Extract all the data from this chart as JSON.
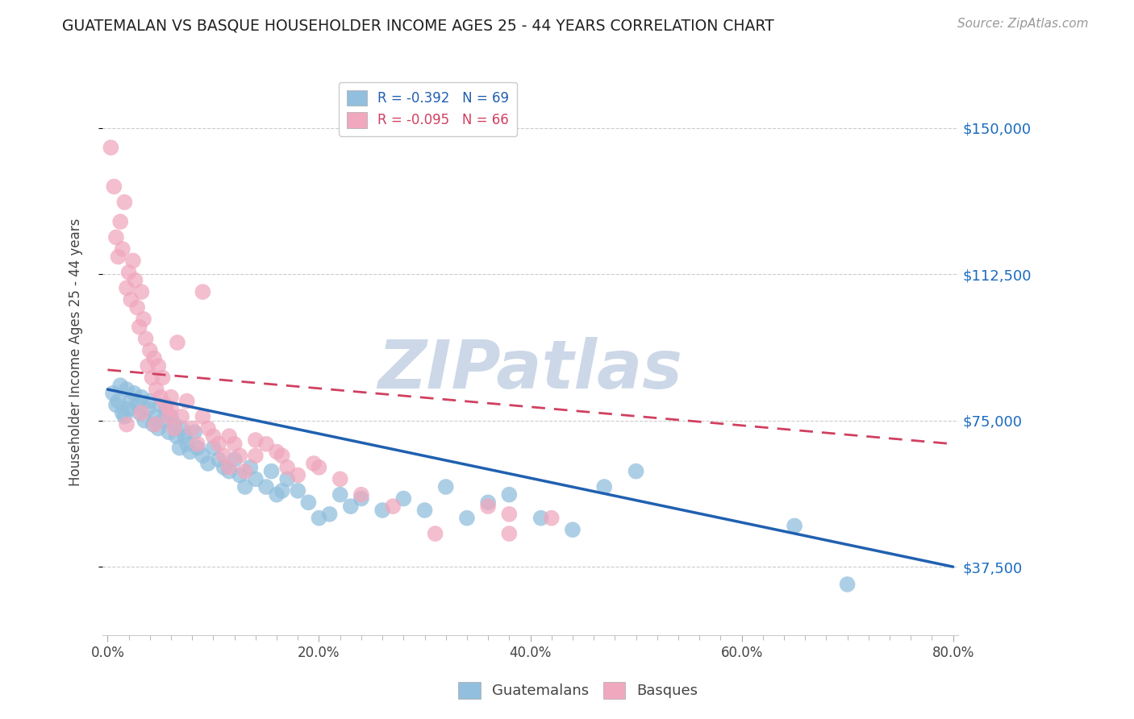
{
  "title": "GUATEMALAN VS BASQUE HOUSEHOLDER INCOME AGES 25 - 44 YEARS CORRELATION CHART",
  "source": "Source: ZipAtlas.com",
  "ylabel": "Householder Income Ages 25 - 44 years",
  "ytick_labels": [
    "$37,500",
    "$75,000",
    "$112,500",
    "$150,000"
  ],
  "ytick_vals": [
    37500,
    75000,
    112500,
    150000
  ],
  "ylim": [
    20000,
    165000
  ],
  "xlim": [
    -0.005,
    0.805
  ],
  "xtick_labels": [
    "0.0%",
    "20.0%",
    "40.0%",
    "60.0%",
    "80.0%"
  ],
  "xtick_vals": [
    0.0,
    0.2,
    0.4,
    0.6,
    0.8
  ],
  "legend_blue_label": "R = -0.392   N = 69",
  "legend_pink_label": "R = -0.095   N = 66",
  "bottom_legend_labels": [
    "Guatemalans",
    "Basques"
  ],
  "watermark": "ZIPatlas",
  "watermark_color": "#ccd8e8",
  "blue_scatter_color": "#92bfdd",
  "blue_scatter_edge": "none",
  "pink_scatter_color": "#f0a8be",
  "pink_scatter_edge": "none",
  "blue_line_color": "#2060b0",
  "pink_line_color": "#d04060",
  "guatemalan_line_x": [
    0.0,
    0.8
  ],
  "guatemalan_line_y": [
    83000,
    37500
  ],
  "basque_line_x": [
    0.0,
    0.8
  ],
  "basque_line_y": [
    88000,
    69000
  ],
  "guatemalan_x": [
    0.005,
    0.008,
    0.01,
    0.012,
    0.014,
    0.016,
    0.018,
    0.02,
    0.022,
    0.025,
    0.028,
    0.03,
    0.032,
    0.035,
    0.038,
    0.04,
    0.043,
    0.045,
    0.048,
    0.05,
    0.052,
    0.055,
    0.058,
    0.06,
    0.063,
    0.065,
    0.068,
    0.07,
    0.073,
    0.075,
    0.078,
    0.082,
    0.085,
    0.09,
    0.095,
    0.1,
    0.105,
    0.11,
    0.115,
    0.12,
    0.125,
    0.13,
    0.135,
    0.14,
    0.15,
    0.155,
    0.16,
    0.165,
    0.17,
    0.18,
    0.19,
    0.2,
    0.21,
    0.22,
    0.23,
    0.24,
    0.26,
    0.28,
    0.3,
    0.32,
    0.34,
    0.36,
    0.38,
    0.41,
    0.44,
    0.47,
    0.5,
    0.65,
    0.7
  ],
  "guatemalan_y": [
    82000,
    79000,
    80000,
    84000,
    77000,
    76000,
    83000,
    78000,
    80000,
    82000,
    79000,
    77000,
    81000,
    75000,
    78000,
    80000,
    74000,
    76000,
    73000,
    79000,
    75000,
    78000,
    72000,
    76000,
    74000,
    71000,
    68000,
    73000,
    71000,
    69000,
    67000,
    72000,
    68000,
    66000,
    64000,
    68000,
    65000,
    63000,
    62000,
    65000,
    61000,
    58000,
    63000,
    60000,
    58000,
    62000,
    56000,
    57000,
    60000,
    57000,
    54000,
    50000,
    51000,
    56000,
    53000,
    55000,
    52000,
    55000,
    52000,
    58000,
    50000,
    54000,
    56000,
    50000,
    47000,
    58000,
    62000,
    48000,
    33000
  ],
  "basque_x": [
    0.003,
    0.006,
    0.008,
    0.01,
    0.012,
    0.014,
    0.016,
    0.018,
    0.02,
    0.022,
    0.024,
    0.026,
    0.028,
    0.03,
    0.032,
    0.034,
    0.036,
    0.038,
    0.04,
    0.042,
    0.044,
    0.046,
    0.048,
    0.05,
    0.052,
    0.055,
    0.058,
    0.06,
    0.063,
    0.066,
    0.07,
    0.075,
    0.08,
    0.085,
    0.09,
    0.095,
    0.1,
    0.105,
    0.11,
    0.115,
    0.12,
    0.125,
    0.13,
    0.14,
    0.15,
    0.165,
    0.18,
    0.2,
    0.22,
    0.24,
    0.27,
    0.31,
    0.36,
    0.38,
    0.17,
    0.195,
    0.09,
    0.115,
    0.14,
    0.42,
    0.38,
    0.16,
    0.032,
    0.018,
    0.045,
    0.06
  ],
  "basque_y": [
    145000,
    135000,
    122000,
    117000,
    126000,
    119000,
    131000,
    109000,
    113000,
    106000,
    116000,
    111000,
    104000,
    99000,
    108000,
    101000,
    96000,
    89000,
    93000,
    86000,
    91000,
    83000,
    89000,
    81000,
    86000,
    79000,
    76000,
    81000,
    73000,
    95000,
    76000,
    80000,
    73000,
    69000,
    76000,
    73000,
    71000,
    69000,
    66000,
    63000,
    69000,
    66000,
    62000,
    66000,
    69000,
    66000,
    61000,
    63000,
    60000,
    56000,
    53000,
    46000,
    53000,
    46000,
    63000,
    64000,
    108000,
    71000,
    70000,
    50000,
    51000,
    67000,
    77000,
    74000,
    74000,
    78000
  ]
}
